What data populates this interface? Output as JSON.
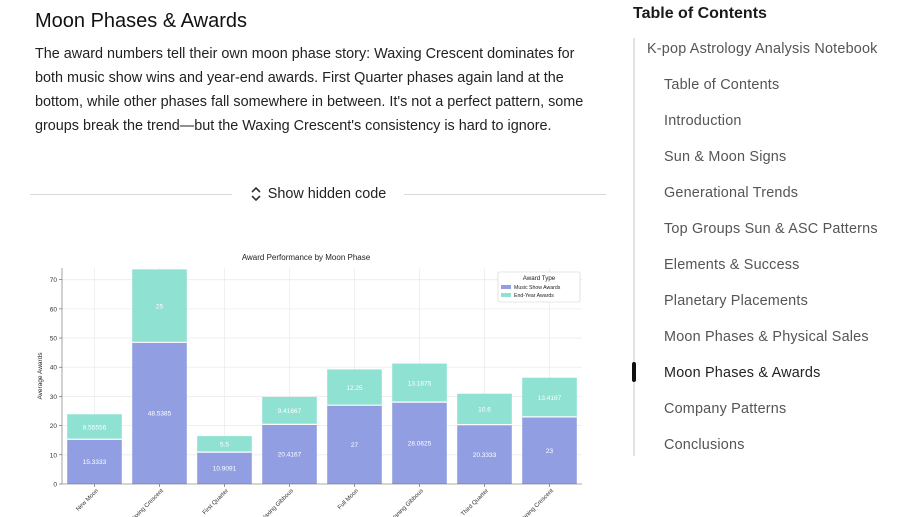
{
  "section": {
    "title": "Moon Phases & Awards",
    "paragraph": "The award numbers tell their own moon phase story: Waxing Crescent dominates for both music show wins and year-end awards. First Quarter phases again land at the bottom, while other phases fall somewhere in between. It's not a perfect pattern, some groups break the trend—but the Waxing Crescent's consistency is hard to ignore."
  },
  "code_toggle": {
    "label": "Show hidden code",
    "icon": "chevron-up-down-icon"
  },
  "toc": {
    "heading": "Table of Contents",
    "items": [
      {
        "label": "K-pop Astrology Analysis Notebook",
        "level": 1
      },
      {
        "label": "Table of Contents",
        "level": 2
      },
      {
        "label": "Introduction",
        "level": 2
      },
      {
        "label": "Sun & Moon Signs",
        "level": 2
      },
      {
        "label": "Generational Trends",
        "level": 2
      },
      {
        "label": "Top Groups Sun & ASC Patterns",
        "level": 2
      },
      {
        "label": "Elements & Success",
        "level": 2
      },
      {
        "label": "Planetary Placements",
        "level": 2
      },
      {
        "label": "Moon Phases & Physical Sales",
        "level": 2
      },
      {
        "label": "Moon Phases & Awards",
        "level": 2,
        "active": true
      },
      {
        "label": "Company Patterns",
        "level": 2
      },
      {
        "label": "Conclusions",
        "level": 2
      }
    ]
  },
  "chart_data": {
    "type": "bar",
    "stacked": true,
    "title": "Award Performance by Moon Phase",
    "xlabel": "",
    "ylabel": "Average Awards",
    "ylim": [
      0,
      74
    ],
    "yticks": [
      0,
      10,
      20,
      30,
      40,
      50,
      60,
      70
    ],
    "grid": true,
    "legend": {
      "title": "Award Type",
      "placement": "top-right"
    },
    "categories": [
      "New Moon",
      "Waxing Crescent",
      "First Quarter",
      "Waxing Gibbous",
      "Full Moon",
      "Waning Gibbous",
      "Third Quarter",
      "Waning Crescent"
    ],
    "series": [
      {
        "name": "Music Show Awards",
        "color": "#919fe2",
        "values": [
          15.3333,
          48.5385,
          10.9091,
          20.4167,
          27,
          28.0625,
          20.3333,
          23
        ],
        "labels": [
          "15.3333",
          "48.5385",
          "10.9091",
          "20.4167",
          "27",
          "28.0625",
          "20.3333",
          "23"
        ]
      },
      {
        "name": "End-Year Awards",
        "color": "#8fe1d1",
        "values": [
          8.55556,
          25,
          5.5,
          9.41667,
          12.25,
          13.1875,
          10.6,
          13.4167
        ],
        "labels": [
          "8.55556",
          "25",
          "5.5",
          "9.41667",
          "12.25",
          "13.1875",
          "10.6",
          "13.4167"
        ]
      }
    ]
  }
}
